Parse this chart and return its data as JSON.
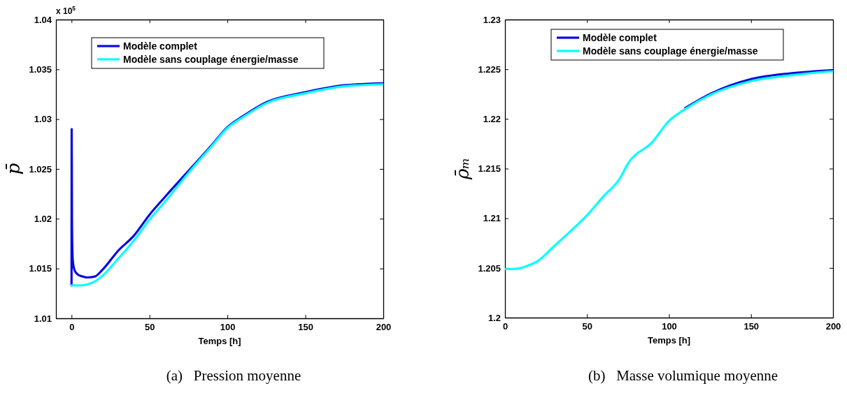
{
  "chart_data": [
    {
      "type": "line",
      "title": "(a)   Pression moyenne",
      "xlabel": "Temps [h]",
      "ylabel": "p̄",
      "annotations": [
        "x 10$^{5}$"
      ],
      "legend": "top left",
      "xlim": [
        -10,
        200
      ],
      "xticks": [
        0,
        50,
        100,
        150,
        200
      ],
      "ylim": [
        1.01,
        1.04
      ],
      "yticks": [
        1.01,
        1.015,
        1.02,
        1.025,
        1.03,
        1.035,
        1.04
      ],
      "series": [
        {
          "name": "Modèle complet",
          "color": "#0a0ae0",
          "x": [
            0,
            0.1,
            0.3,
            0.6,
            1,
            2,
            4,
            7,
            10,
            15,
            20,
            30,
            40,
            50,
            60,
            75,
            90,
            100,
            110,
            125,
            150,
            175,
            200
          ],
          "values": [
            1.0133,
            1.029,
            1.0195,
            1.0165,
            1.0155,
            1.0148,
            1.0144,
            1.0142,
            1.0141,
            1.0142,
            1.0149,
            1.0168,
            1.0183,
            1.0204,
            1.0222,
            1.0248,
            1.0274,
            1.0292,
            1.0303,
            1.0317,
            1.0327,
            1.0334,
            1.0336
          ]
        },
        {
          "name": "Modèle sans couplage énergie/masse",
          "color": "#00ffff",
          "x": [
            0,
            5,
            10,
            15,
            20,
            30,
            40,
            50,
            60,
            75,
            90,
            100,
            110,
            125,
            150,
            175,
            200
          ],
          "values": [
            1.0133,
            1.0133,
            1.0134,
            1.0137,
            1.0143,
            1.016,
            1.0178,
            1.0199,
            1.0217,
            1.0246,
            1.0273,
            1.0291,
            1.0302,
            1.0316,
            1.0326,
            1.0333,
            1.0335
          ]
        }
      ]
    },
    {
      "type": "line",
      "title": "(b)   Masse volumique moyenne",
      "xlabel": "Temps [h]",
      "ylabel": "ρ̄ₘ",
      "legend": "top left",
      "xlim": [
        0,
        200
      ],
      "xticks": [
        0,
        50,
        100,
        150,
        200
      ],
      "ylim": [
        1.2,
        1.23
      ],
      "yticks": [
        1.2,
        1.205,
        1.21,
        1.215,
        1.22,
        1.225,
        1.23
      ],
      "series": [
        {
          "name": "Modèle complet",
          "color": "#0a0ae0",
          "x": [
            110,
            125,
            150,
            175,
            200
          ],
          "values": [
            1.2211,
            1.2225,
            1.224,
            1.2246,
            1.2249
          ]
        },
        {
          "name": "Modèle sans couplage énergie/masse",
          "color": "#00ffff",
          "x": [
            0,
            5,
            10,
            15,
            20,
            30,
            40,
            50,
            60,
            70,
            75,
            90,
            100,
            110,
            125,
            150,
            175,
            200
          ],
          "values": [
            1.2049,
            1.2049,
            1.205,
            1.2053,
            1.2057,
            1.2072,
            1.2087,
            1.2103,
            1.2122,
            1.214,
            1.2155,
            1.2177,
            1.2198,
            1.221,
            1.2224,
            1.2238,
            1.2244,
            1.2248
          ]
        }
      ]
    }
  ]
}
